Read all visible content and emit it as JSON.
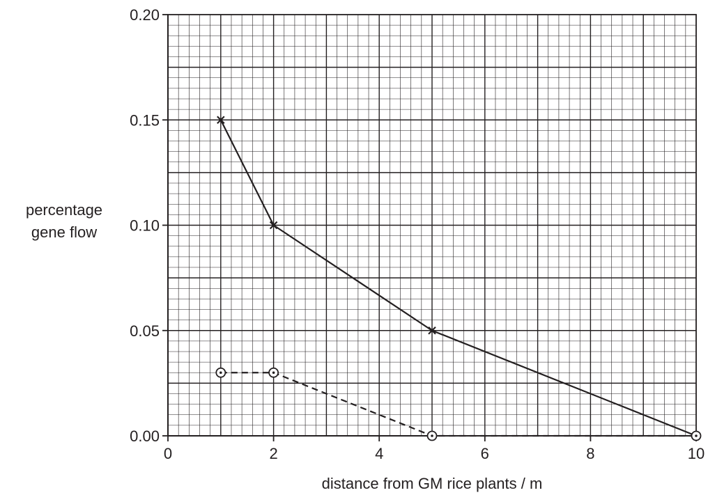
{
  "chart_data": {
    "type": "line",
    "title": "",
    "xlabel": "distance from GM rice plants / m",
    "ylabel": [
      "percentage",
      "gene flow"
    ],
    "xlim": [
      0,
      10
    ],
    "ylim": [
      0,
      0.2
    ],
    "x_ticks": [
      "0",
      "2",
      "4",
      "6",
      "8",
      "10"
    ],
    "y_ticks": [
      "0.00",
      "0.05",
      "0.10",
      "0.15",
      "0.20"
    ],
    "grid": true,
    "legend": "none",
    "series": [
      {
        "marker": "cross",
        "line_style": "solid",
        "color": "#231f20",
        "x": [
          1,
          2,
          5,
          10
        ],
        "y": [
          0.15,
          0.1,
          0.05,
          0.0
        ]
      },
      {
        "marker": "circled-dot",
        "line_style": "dashed",
        "color": "#231f20",
        "x": [
          1,
          2,
          5,
          10
        ],
        "y": [
          0.03,
          0.03,
          0.0,
          0.0
        ]
      }
    ]
  }
}
